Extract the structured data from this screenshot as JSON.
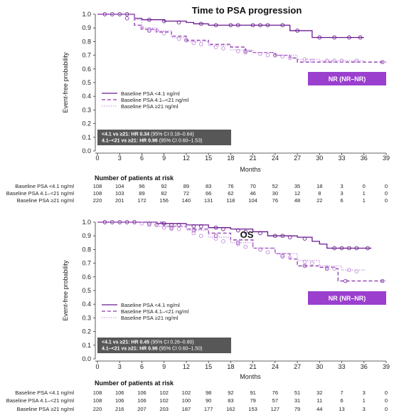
{
  "colors": {
    "c1": "#6a1b8f",
    "c2": "#8a3aac",
    "c3": "#c58ae0",
    "nr_box": "#9b3fce",
    "hr_box": "#575757"
  },
  "chart_data": [
    {
      "type": "line",
      "title": "Time to PSA progression",
      "xlabel": "Months",
      "ylabel": "Event-free probability",
      "xlim": [
        0,
        39
      ],
      "ylim": [
        0,
        1.0
      ],
      "x_ticks": [
        "0",
        "3",
        "6",
        "9",
        "12",
        "15",
        "18",
        "21",
        "24",
        "27",
        "30",
        "33",
        "36",
        "39"
      ],
      "y_ticks": [
        "0.0",
        "0.1",
        "0.2",
        "0.3",
        "0.4",
        "0.5",
        "0.6",
        "0.7",
        "0.8",
        "0.9",
        "1.0"
      ],
      "legend": "center-left",
      "series": [
        {
          "name": "Baseline PSA <4.1 ng/ml",
          "style": "solid",
          "points": [
            [
              0,
              1.0
            ],
            [
              3,
              1.0
            ],
            [
              5,
              0.97
            ],
            [
              6,
              0.96
            ],
            [
              9,
              0.95
            ],
            [
              12,
              0.94
            ],
            [
              13,
              0.93
            ],
            [
              15,
              0.92
            ],
            [
              21,
              0.92
            ],
            [
              24,
              0.92
            ],
            [
              25.5,
              0.92
            ],
            [
              26,
              0.88
            ],
            [
              28,
              0.88
            ],
            [
              29,
              0.83
            ],
            [
              33,
              0.83
            ],
            [
              36,
              0.83
            ]
          ],
          "censor": [
            [
              1,
              1.0
            ],
            [
              2,
              1.0
            ],
            [
              3,
              1.0
            ],
            [
              4,
              1.0
            ],
            [
              7,
              0.96
            ],
            [
              9,
              0.95
            ],
            [
              11,
              0.94
            ],
            [
              14,
              0.93
            ],
            [
              16,
              0.92
            ],
            [
              18,
              0.92
            ],
            [
              19,
              0.92
            ],
            [
              21,
              0.92
            ],
            [
              22,
              0.92
            ],
            [
              23,
              0.92
            ],
            [
              25,
              0.92
            ],
            [
              27,
              0.88
            ],
            [
              30,
              0.83
            ],
            [
              32,
              0.83
            ],
            [
              34,
              0.83
            ],
            [
              35.5,
              0.83
            ]
          ]
        },
        {
          "name": "Baseline PSA 4.1–<21 ng/ml",
          "style": "dashed",
          "points": [
            [
              0,
              1.0
            ],
            [
              3,
              1.0
            ],
            [
              5,
              0.92
            ],
            [
              6,
              0.89
            ],
            [
              8,
              0.87
            ],
            [
              10,
              0.84
            ],
            [
              12,
              0.81
            ],
            [
              15,
              0.78
            ],
            [
              18,
              0.76
            ],
            [
              20,
              0.73
            ],
            [
              21,
              0.72
            ],
            [
              24,
              0.7
            ],
            [
              26,
              0.68
            ],
            [
              27,
              0.65
            ],
            [
              39,
              0.65
            ]
          ],
          "censor": [
            [
              4,
              0.97
            ],
            [
              7,
              0.88
            ],
            [
              12,
              0.81
            ],
            [
              20,
              0.73
            ],
            [
              24,
              0.7
            ],
            [
              38.5,
              0.65
            ]
          ]
        },
        {
          "name": "Baseline PSA ≥21 ng/ml",
          "style": "dotted",
          "points": [
            [
              0,
              1.0
            ],
            [
              4,
              1.0
            ],
            [
              5,
              0.96
            ],
            [
              6,
              0.9
            ],
            [
              8,
              0.88
            ],
            [
              10,
              0.83
            ],
            [
              12,
              0.8
            ],
            [
              15,
              0.77
            ],
            [
              18,
              0.74
            ],
            [
              21,
              0.72
            ],
            [
              24,
              0.7
            ],
            [
              27,
              0.67
            ],
            [
              30,
              0.66
            ],
            [
              36,
              0.66
            ]
          ],
          "censor": [
            [
              6,
              0.9
            ],
            [
              7,
              0.89
            ],
            [
              8,
              0.88
            ],
            [
              9,
              0.86
            ],
            [
              11,
              0.82
            ],
            [
              13,
              0.79
            ],
            [
              14,
              0.78
            ],
            [
              16,
              0.76
            ],
            [
              17,
              0.75
            ],
            [
              19,
              0.73
            ],
            [
              20,
              0.72
            ],
            [
              22,
              0.71
            ],
            [
              23,
              0.7
            ],
            [
              25,
              0.69
            ],
            [
              26,
              0.68
            ],
            [
              28,
              0.67
            ],
            [
              29,
              0.66
            ],
            [
              31,
              0.66
            ],
            [
              32,
              0.66
            ],
            [
              33,
              0.66
            ],
            [
              35,
              0.66
            ]
          ]
        }
      ],
      "nr_label": "NR (NR–NR)",
      "hr_lines": [
        {
          "bold": "<4.1 vs ≥21: HR 0.34",
          "rest": " (95% CI 0.18–0.64)"
        },
        {
          "bold": "4.1–<21 vs ≥21: HR 0.96",
          "rest": " (95% CI 0.60–1.53)"
        }
      ],
      "risk_header": "Number of patients at risk",
      "risk_table": [
        {
          "label": "Baseline PSA <4.1 ng/ml",
          "values": [
            "108",
            "104",
            "96",
            "92",
            "89",
            "83",
            "76",
            "70",
            "52",
            "35",
            "18",
            "3",
            "0",
            "0"
          ]
        },
        {
          "label": "Baseline PSA 4.1–<21 ng/ml",
          "values": [
            "108",
            "103",
            "89",
            "82",
            "72",
            "66",
            "62",
            "46",
            "30",
            "12",
            "8",
            "3",
            "1",
            "0"
          ]
        },
        {
          "label": "Baseline PSA ≥21 ng/ml",
          "values": [
            "220",
            "201",
            "172",
            "156",
            "140",
            "131",
            "118",
            "104",
            "76",
            "48",
            "22",
            "6",
            "1",
            "0"
          ]
        }
      ]
    },
    {
      "type": "line",
      "title": "OS",
      "xlabel": "Months",
      "ylabel": "Event-free probability",
      "xlim": [
        0,
        39
      ],
      "ylim": [
        0,
        1.0
      ],
      "x_ticks": [
        "0",
        "3",
        "6",
        "9",
        "12",
        "15",
        "18",
        "21",
        "24",
        "27",
        "30",
        "33",
        "36",
        "39"
      ],
      "y_ticks": [
        "0.0",
        "0.1",
        "0.2",
        "0.3",
        "0.4",
        "0.5",
        "0.6",
        "0.7",
        "0.8",
        "0.9",
        "1.0"
      ],
      "legend": "center-left",
      "series": [
        {
          "name": "Baseline PSA <4.1 ng/ml",
          "style": "solid",
          "points": [
            [
              0,
              1.0
            ],
            [
              6,
              1.0
            ],
            [
              8,
              0.99
            ],
            [
              12,
              0.98
            ],
            [
              15,
              0.96
            ],
            [
              18,
              0.95
            ],
            [
              21,
              0.93
            ],
            [
              23,
              0.9
            ],
            [
              27,
              0.89
            ],
            [
              29,
              0.86
            ],
            [
              30,
              0.84
            ],
            [
              31,
              0.81
            ],
            [
              37,
              0.81
            ]
          ],
          "censor": [
            [
              1,
              1.0
            ],
            [
              2,
              1.0
            ],
            [
              3,
              1.0
            ],
            [
              4,
              1.0
            ],
            [
              5,
              1.0
            ],
            [
              7,
              0.99
            ],
            [
              9,
              0.99
            ],
            [
              10,
              0.98
            ],
            [
              11,
              0.98
            ],
            [
              13,
              0.97
            ],
            [
              14,
              0.97
            ],
            [
              16,
              0.96
            ],
            [
              17,
              0.95
            ],
            [
              19,
              0.94
            ],
            [
              20,
              0.93
            ],
            [
              22,
              0.92
            ],
            [
              24,
              0.9
            ],
            [
              25,
              0.9
            ],
            [
              26,
              0.89
            ],
            [
              28,
              0.88
            ],
            [
              32,
              0.81
            ],
            [
              33,
              0.81
            ],
            [
              34,
              0.81
            ],
            [
              35,
              0.81
            ],
            [
              36.5,
              0.81
            ]
          ]
        },
        {
          "name": "Baseline PSA 4.1–<21 ng/ml",
          "style": "dashed",
          "points": [
            [
              0,
              1.0
            ],
            [
              6,
              1.0
            ],
            [
              9,
              0.97
            ],
            [
              12,
              0.95
            ],
            [
              15,
              0.92
            ],
            [
              18,
              0.87
            ],
            [
              21,
              0.81
            ],
            [
              24,
              0.77
            ],
            [
              26,
              0.73
            ],
            [
              27,
              0.68
            ],
            [
              30,
              0.67
            ],
            [
              32,
              0.66
            ],
            [
              32.5,
              0.57
            ],
            [
              39,
              0.57
            ]
          ],
          "censor": [
            [
              5,
              1.0
            ],
            [
              8,
              0.98
            ],
            [
              10,
              0.96
            ],
            [
              13,
              0.94
            ],
            [
              16,
              0.9
            ],
            [
              19,
              0.85
            ],
            [
              22,
              0.8
            ],
            [
              25,
              0.75
            ],
            [
              28,
              0.68
            ],
            [
              31,
              0.66
            ],
            [
              33.5,
              0.57
            ],
            [
              38.5,
              0.57
            ]
          ]
        },
        {
          "name": "Baseline PSA ≥21 ng/ml",
          "style": "dotted",
          "points": [
            [
              0,
              1.0
            ],
            [
              5,
              1.0
            ],
            [
              8,
              0.97
            ],
            [
              12,
              0.94
            ],
            [
              15,
              0.89
            ],
            [
              18,
              0.85
            ],
            [
              21,
              0.81
            ],
            [
              24,
              0.77
            ],
            [
              27,
              0.72
            ],
            [
              30,
              0.68
            ],
            [
              33,
              0.65
            ],
            [
              36,
              0.64
            ]
          ],
          "censor": [
            [
              6,
              0.99
            ],
            [
              7,
              0.98
            ],
            [
              9,
              0.96
            ],
            [
              10,
              0.95
            ],
            [
              11,
              0.95
            ],
            [
              13,
              0.92
            ],
            [
              14,
              0.9
            ],
            [
              16,
              0.88
            ],
            [
              17,
              0.86
            ],
            [
              19,
              0.84
            ],
            [
              20,
              0.82
            ],
            [
              22,
              0.8
            ],
            [
              23,
              0.78
            ],
            [
              25,
              0.76
            ],
            [
              26,
              0.74
            ],
            [
              28,
              0.71
            ],
            [
              29,
              0.7
            ],
            [
              31,
              0.67
            ],
            [
              32,
              0.66
            ],
            [
              34,
              0.65
            ],
            [
              35,
              0.64
            ]
          ]
        }
      ],
      "nr_label": "NR (NR–NR)",
      "hr_lines": [
        {
          "bold": "<4.1 vs ≥21: HR 0.45",
          "rest": " (95% CI 0.26–0.80)"
        },
        {
          "bold": "4.1–<21 vs ≥21: HR 0.96",
          "rest": " (95% CI 0.60–1.50)"
        }
      ],
      "risk_header": "Number of patients at risk",
      "risk_table": [
        {
          "label": "Baseline PSA <4.1 ng/ml",
          "values": [
            "108",
            "106",
            "106",
            "102",
            "102",
            "98",
            "92",
            "91",
            "76",
            "51",
            "32",
            "7",
            "3",
            "0"
          ]
        },
        {
          "label": "Baseline PSA 4.1–<21 ng/ml",
          "values": [
            "108",
            "106",
            "106",
            "102",
            "100",
            "90",
            "83",
            "79",
            "57",
            "31",
            "11",
            "6",
            "1",
            "0"
          ]
        },
        {
          "label": "Baseline PSA ≥21 ng/ml",
          "values": [
            "220",
            "216",
            "207",
            "203",
            "187",
            "177",
            "162",
            "153",
            "127",
            "79",
            "44",
            "13",
            "3",
            "0"
          ]
        }
      ]
    }
  ]
}
